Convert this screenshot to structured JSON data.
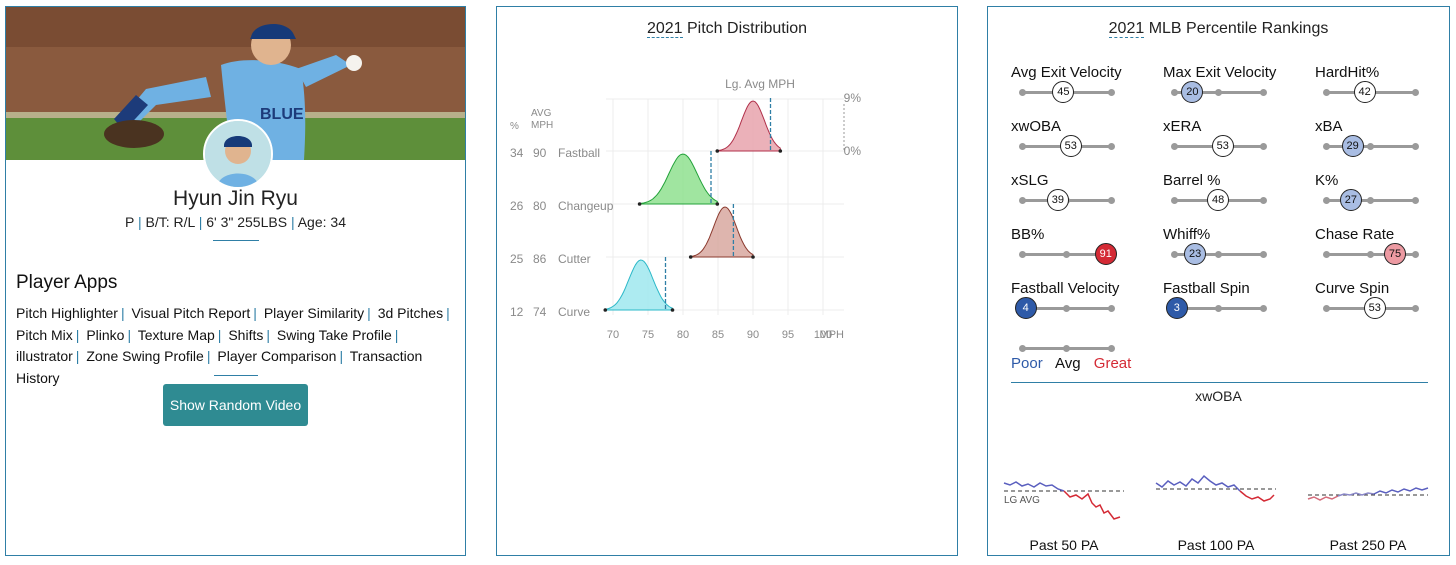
{
  "player": {
    "name": "Hyun Jin Ryu",
    "info_position": "P",
    "info_bt": "B/T: R/L",
    "info_size": "6' 3\" 255LBS",
    "info_age": "Age: 34",
    "jersey_text": "BLUE",
    "apps_title": "Player Apps",
    "apps": [
      "Pitch Highlighter",
      "Visual Pitch Report",
      "Player Similarity",
      "3d Pitches",
      "Pitch Mix",
      "Plinko",
      "Texture Map",
      "Shifts",
      "Swing Take Profile",
      "illustrator",
      "Zone Swing Profile",
      "Player Comparison",
      "Transaction History"
    ],
    "button_label": "Show Random Video"
  },
  "pitch": {
    "title_year": "2021",
    "title_rest": " Pitch Distribution",
    "lg_avg_label": "Lg. Avg MPH",
    "pct_header": "%",
    "avg_header_1": "AVG",
    "avg_header_2": "MPH",
    "top_pct_label": "9%",
    "zero_pct_label": "0%",
    "axis_unit": "MPH",
    "chart_data": {
      "type": "area",
      "x_ticks": [
        70,
        75,
        80,
        85,
        90,
        95,
        100
      ],
      "xlim": [
        69,
        103
      ],
      "pitches": [
        {
          "name": "Fastball",
          "pct": 34,
          "avg_mph": 90,
          "color": "#e8a3ad",
          "line": "#b0304a",
          "lg_avg": 92.5,
          "range": [
            84.9,
            93.9
          ]
        },
        {
          "name": "Changeup",
          "pct": 26,
          "avg_mph": 80,
          "color": "#8fe08f",
          "line": "#23a23a",
          "lg_avg": 84,
          "range": [
            73.8,
            84.9
          ]
        },
        {
          "name": "Cutter",
          "pct": 25,
          "avg_mph": 86,
          "color": "#d8a8a0",
          "line": "#8b3a2e",
          "lg_avg": 87.2,
          "range": [
            81.1,
            90
          ]
        },
        {
          "name": "Curve",
          "pct": 12,
          "avg_mph": 74,
          "color": "#9fe8ef",
          "line": "#2bb8c8",
          "lg_avg": 77.5,
          "range": [
            68.9,
            78.5
          ]
        }
      ]
    }
  },
  "percentile": {
    "title_year": "2021",
    "title_rest": " MLB Percentile Rankings",
    "metrics": [
      {
        "label": "Avg Exit Velocity",
        "value": 45
      },
      {
        "label": "Max Exit Velocity",
        "value": 20
      },
      {
        "label": "HardHit%",
        "value": 42
      },
      {
        "label": "xwOBA",
        "value": 53
      },
      {
        "label": "xERA",
        "value": 53
      },
      {
        "label": "xBA",
        "value": 29
      },
      {
        "label": "xSLG",
        "value": 39
      },
      {
        "label": "Barrel %",
        "value": 48
      },
      {
        "label": "K%",
        "value": 27
      },
      {
        "label": "BB%",
        "value": 91
      },
      {
        "label": "Whiff%",
        "value": 23
      },
      {
        "label": "Chase Rate",
        "value": 75
      },
      {
        "label": "Fastball Velocity",
        "value": 4
      },
      {
        "label": "Fastball Spin",
        "value": 3
      },
      {
        "label": "Curve Spin",
        "value": 53
      }
    ],
    "legend_poor": "Poor",
    "legend_avg": "Avg",
    "legend_great": "Great",
    "colors": {
      "poor": "#2e5aa8",
      "great": "#d42a35"
    },
    "xwoba_title": "xwOBA",
    "lg_avg_label": "LG AVG",
    "sparks": [
      {
        "label": "Past 50 PA"
      },
      {
        "label": "Past 100 PA"
      },
      {
        "label": "Past 250 PA"
      }
    ]
  }
}
